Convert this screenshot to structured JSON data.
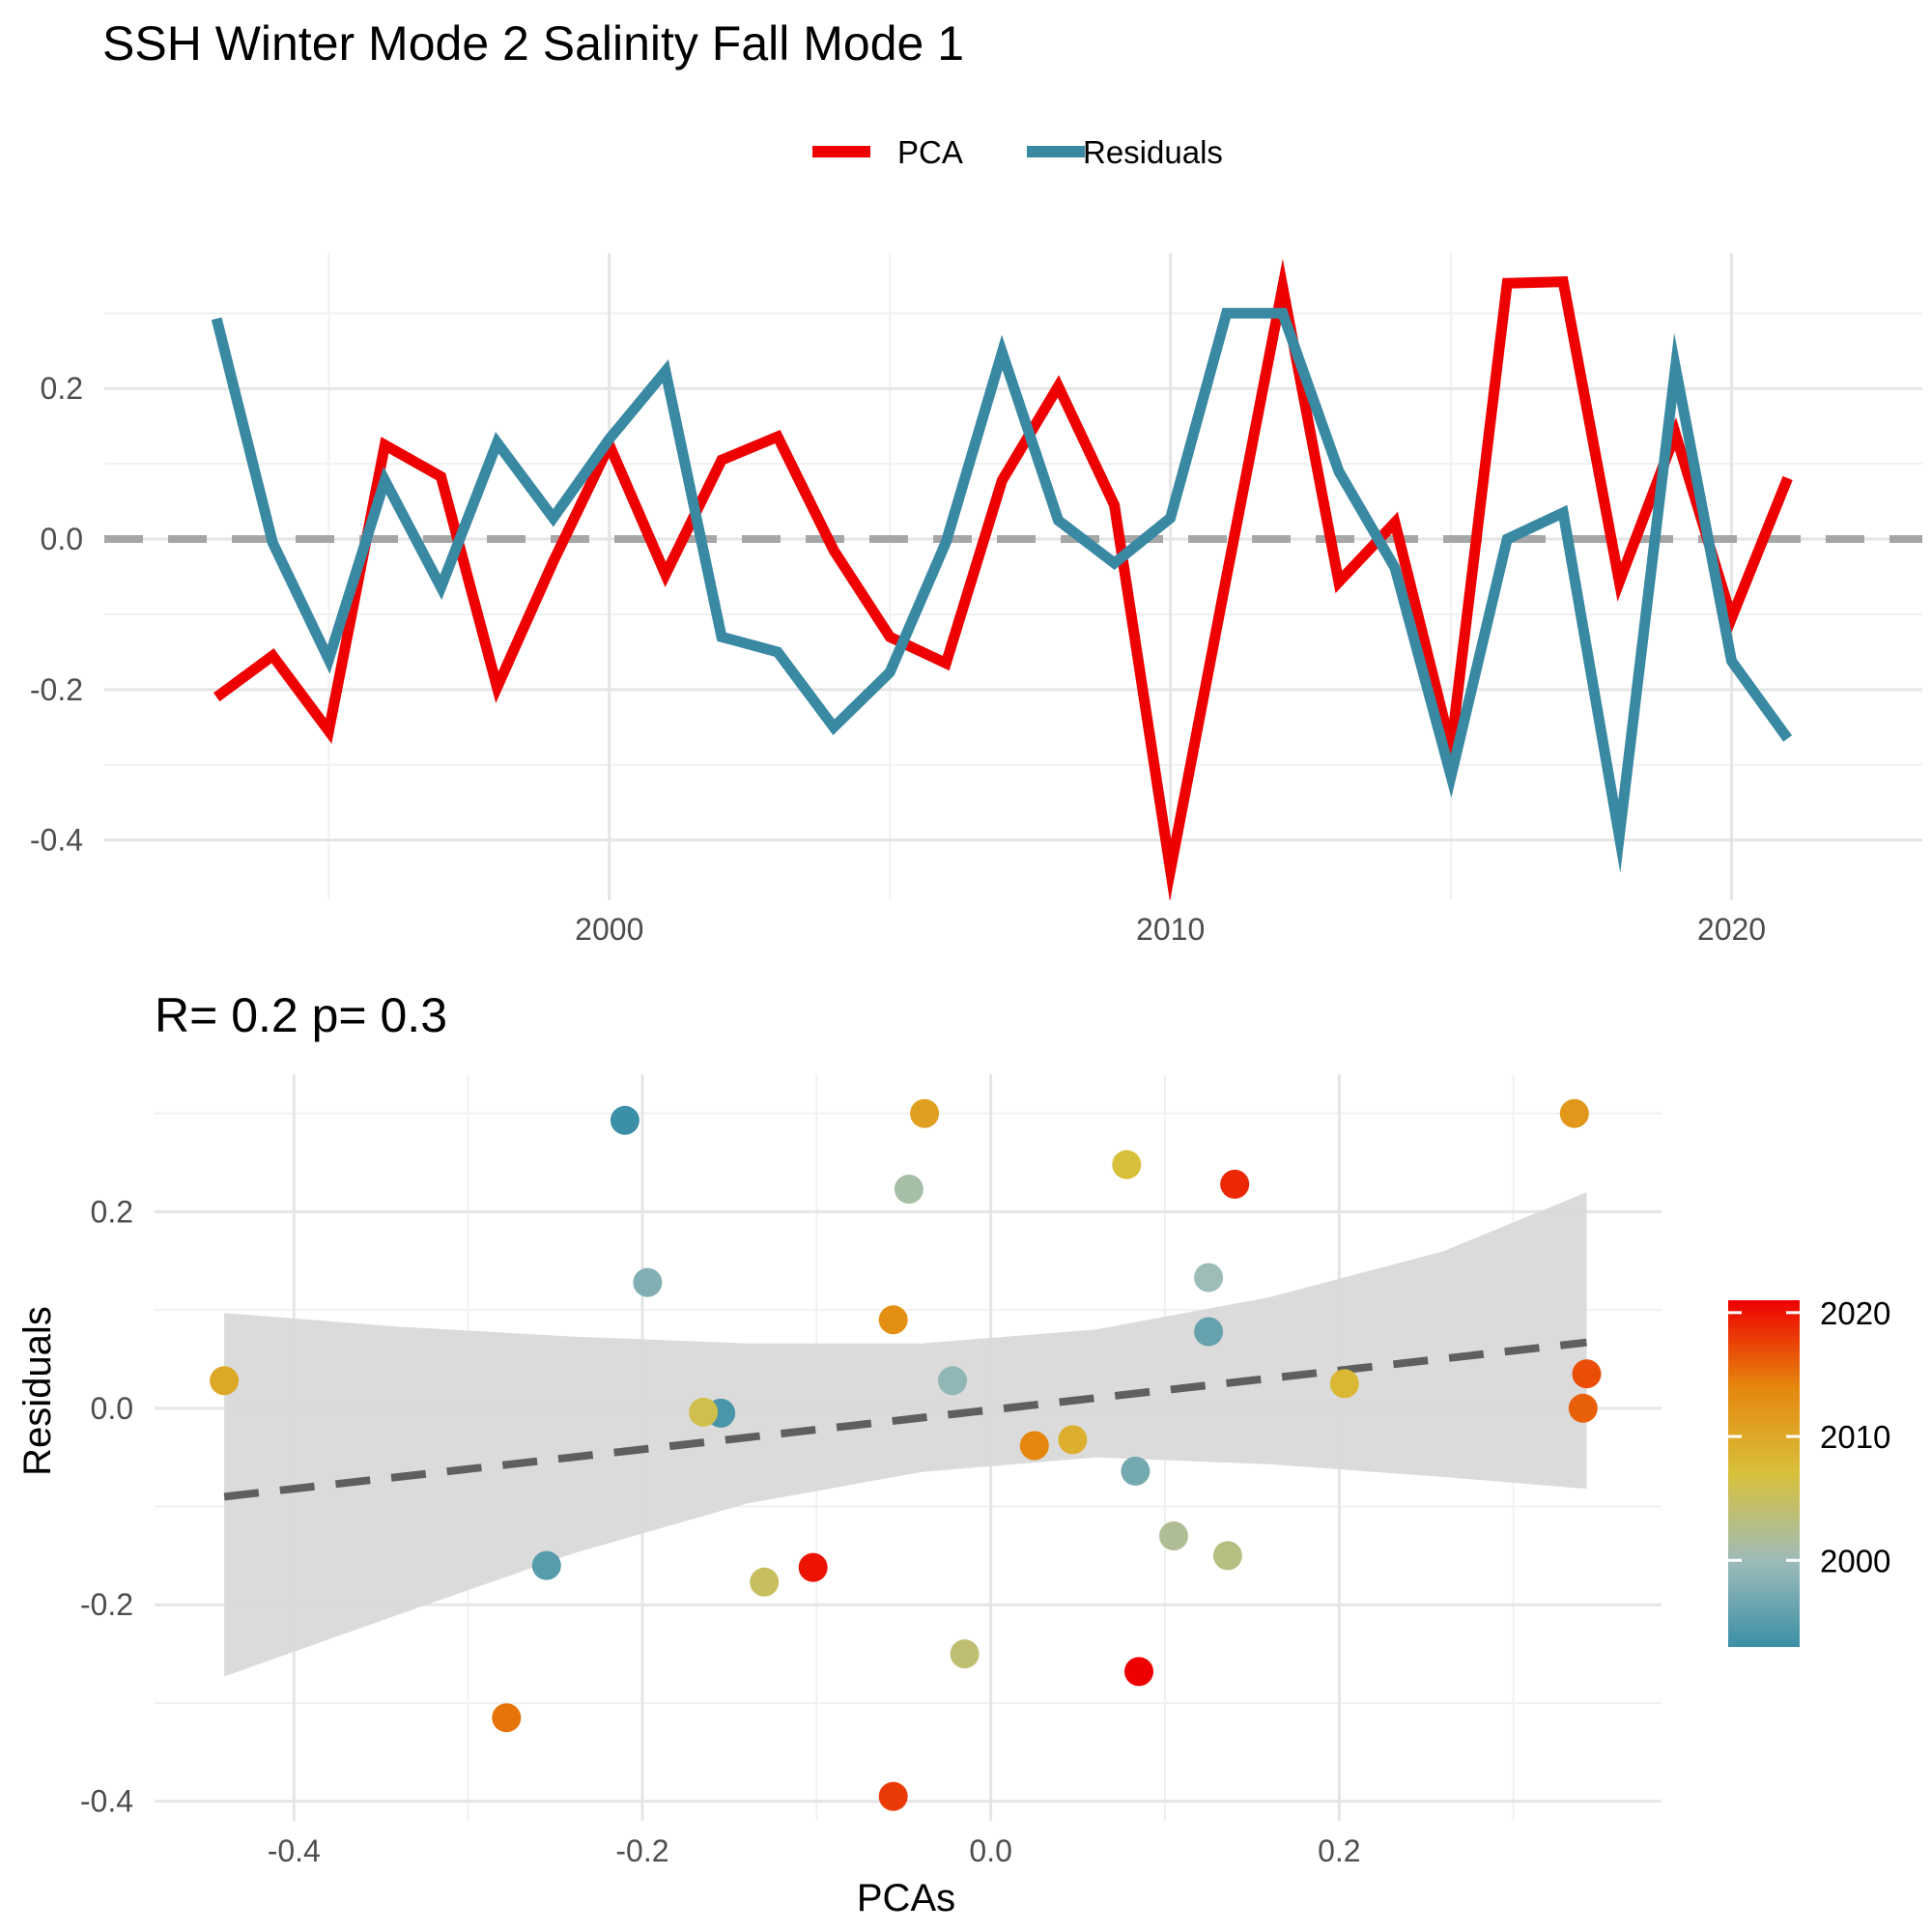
{
  "title": "SSH Winter Mode 2 Salinity Fall Mode 1",
  "colors": {
    "pca": "#ee0000",
    "residuals": "#3a89a3",
    "zero_line": "#a6a6a6",
    "fit_line": "#5f5f5f",
    "ribbon": "#d9d9d9",
    "grid_major": "#e5e5e5",
    "grid_minor": "#f1f1f1",
    "gradient": [
      "#3b8fa6",
      "#9ebcb8",
      "#d8c03b",
      "#e5870d",
      "#ee0000"
    ]
  },
  "chart_data": [
    {
      "type": "line",
      "x": [
        1993,
        1994,
        1995,
        1996,
        1997,
        1998,
        1999,
        2000,
        2001,
        2002,
        2003,
        2004,
        2005,
        2006,
        2007,
        2008,
        2009,
        2010,
        2011,
        2012,
        2013,
        2014,
        2015,
        2016,
        2017,
        2018,
        2019,
        2020,
        2021
      ],
      "series": [
        {
          "name": "PCA",
          "values": [
            -0.21,
            -0.155,
            -0.255,
            0.125,
            0.083,
            -0.197,
            -0.03,
            0.125,
            -0.047,
            0.105,
            0.136,
            -0.015,
            -0.13,
            -0.165,
            0.078,
            0.203,
            0.045,
            -0.44,
            -0.05,
            0.335,
            -0.057,
            0.022,
            -0.278,
            0.34,
            0.342,
            -0.057,
            0.14,
            -0.105,
            0.081
          ]
        },
        {
          "name": "Residuals",
          "values": [
            0.293,
            -0.005,
            -0.16,
            0.078,
            -0.064,
            0.128,
            0.028,
            0.133,
            0.223,
            -0.13,
            -0.15,
            -0.25,
            -0.177,
            -0.004,
            0.248,
            0.025,
            -0.032,
            0.028,
            0.3,
            0.3,
            0.09,
            -0.038,
            -0.315,
            0.0,
            0.035,
            -0.395,
            0.228,
            -0.162,
            -0.265
          ]
        }
      ],
      "xticks": [
        2000,
        2010,
        2020
      ],
      "yticks": [
        "-0.4",
        "-0.2",
        "0.0",
        "0.2"
      ],
      "xlim": [
        1991,
        2023.4
      ],
      "ylim": [
        -0.48,
        0.38
      ],
      "reference_line_y": 0,
      "legend": {
        "position": "top",
        "entries": [
          "PCA",
          "Residuals"
        ]
      },
      "grid": true
    },
    {
      "type": "scatter",
      "subtitle": "R= 0.2  p= 0.3",
      "xlabel": "PCAs",
      "ylabel": "Residuals",
      "points": [
        {
          "x": -0.21,
          "y": 0.293,
          "year": 1993
        },
        {
          "x": -0.155,
          "y": -0.005,
          "year": 1994
        },
        {
          "x": -0.255,
          "y": -0.16,
          "year": 1995
        },
        {
          "x": 0.125,
          "y": 0.078,
          "year": 1996
        },
        {
          "x": 0.083,
          "y": -0.064,
          "year": 1997
        },
        {
          "x": -0.197,
          "y": 0.128,
          "year": 1998
        },
        {
          "x": -0.022,
          "y": 0.028,
          "year": 1999
        },
        {
          "x": 0.125,
          "y": 0.133,
          "year": 2000
        },
        {
          "x": -0.047,
          "y": 0.223,
          "year": 2001
        },
        {
          "x": 0.105,
          "y": -0.13,
          "year": 2002
        },
        {
          "x": 0.136,
          "y": -0.15,
          "year": 2003
        },
        {
          "x": -0.015,
          "y": -0.25,
          "year": 2004
        },
        {
          "x": -0.13,
          "y": -0.177,
          "year": 2005
        },
        {
          "x": -0.165,
          "y": -0.004,
          "year": 2006
        },
        {
          "x": 0.078,
          "y": 0.248,
          "year": 2007
        },
        {
          "x": 0.203,
          "y": 0.025,
          "year": 2008
        },
        {
          "x": 0.047,
          "y": -0.032,
          "year": 2009
        },
        {
          "x": -0.44,
          "y": 0.028,
          "year": 2010
        },
        {
          "x": -0.038,
          "y": 0.3,
          "year": 2011
        },
        {
          "x": 0.335,
          "y": 0.3,
          "year": 2012
        },
        {
          "x": -0.056,
          "y": 0.09,
          "year": 2013
        },
        {
          "x": 0.025,
          "y": -0.038,
          "year": 2014
        },
        {
          "x": -0.278,
          "y": -0.315,
          "year": 2015
        },
        {
          "x": 0.34,
          "y": 0.0,
          "year": 2016
        },
        {
          "x": 0.342,
          "y": 0.035,
          "year": 2017
        },
        {
          "x": -0.056,
          "y": -0.395,
          "year": 2018
        },
        {
          "x": 0.14,
          "y": 0.228,
          "year": 2019
        },
        {
          "x": -0.102,
          "y": -0.162,
          "year": 2020
        },
        {
          "x": 0.085,
          "y": -0.268,
          "year": 2021
        }
      ],
      "fit": {
        "x": [
          -0.44,
          0.342
        ],
        "y": [
          -0.09,
          0.067
        ]
      },
      "ribbon_upper": [
        [
          -0.44,
          0.097
        ],
        [
          -0.34,
          0.083
        ],
        [
          -0.24,
          0.073
        ],
        [
          -0.14,
          0.066
        ],
        [
          -0.04,
          0.066
        ],
        [
          0.06,
          0.08
        ],
        [
          0.16,
          0.113
        ],
        [
          0.26,
          0.16
        ],
        [
          0.342,
          0.22
        ]
      ],
      "ribbon_lower": [
        [
          -0.44,
          -0.273
        ],
        [
          -0.34,
          -0.21
        ],
        [
          -0.24,
          -0.148
        ],
        [
          -0.14,
          -0.097
        ],
        [
          -0.04,
          -0.065
        ],
        [
          0.06,
          -0.05
        ],
        [
          0.16,
          -0.057
        ],
        [
          0.26,
          -0.07
        ],
        [
          0.342,
          -0.082
        ]
      ],
      "xticks": [
        "-0.4",
        "-0.2",
        "0.0",
        "0.2"
      ],
      "yticks": [
        "-0.4",
        "-0.2",
        "0.0",
        "0.2"
      ],
      "xlim": [
        -0.48,
        0.385
      ],
      "ylim": [
        -0.42,
        0.34
      ],
      "colorbar": {
        "ticks": [
          "2000",
          "2010",
          "2020"
        ],
        "range": [
          1993,
          2021
        ]
      },
      "grid": true
    }
  ]
}
